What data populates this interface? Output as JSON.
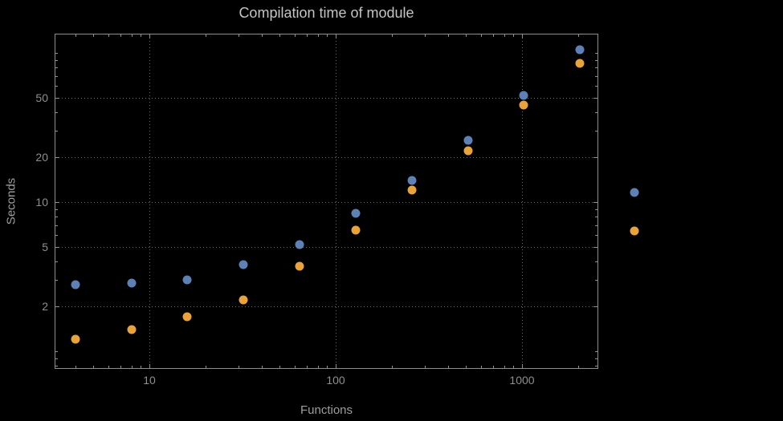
{
  "chart_data": {
    "type": "scatter",
    "title": "Compilation time of module",
    "xlabel": "Functions",
    "ylabel": "Seconds",
    "x_scale": "log",
    "y_scale": "log",
    "grid": true,
    "x_ticks": [
      10,
      100,
      1000
    ],
    "y_ticks": [
      2,
      5,
      10,
      20,
      50
    ],
    "x_range": [
      3.1,
      2600
    ],
    "y_range": [
      0.76,
      135
    ],
    "x": [
      4,
      8,
      16,
      32,
      64,
      128,
      256,
      512,
      1024,
      2048
    ],
    "series": [
      {
        "name": "blue",
        "color": "#5e81b5",
        "values": [
          2.8,
          2.85,
          3.0,
          3.8,
          5.2,
          8.4,
          14,
          26,
          52,
          105
        ]
      },
      {
        "name": "orange",
        "color": "#e8a33d",
        "values": [
          1.2,
          1.4,
          1.7,
          2.2,
          3.7,
          6.5,
          12,
          22,
          45,
          85
        ]
      }
    ],
    "legend": {
      "position": "right",
      "labels_visible": false
    }
  },
  "colors": {
    "background": "#000000",
    "frame": "#8f8f8f",
    "grid": "#6a6a6a",
    "title_text": "#c4c4c4",
    "tick_text": "#8f8f8f",
    "axis_label_text": "#9e9e9e"
  }
}
